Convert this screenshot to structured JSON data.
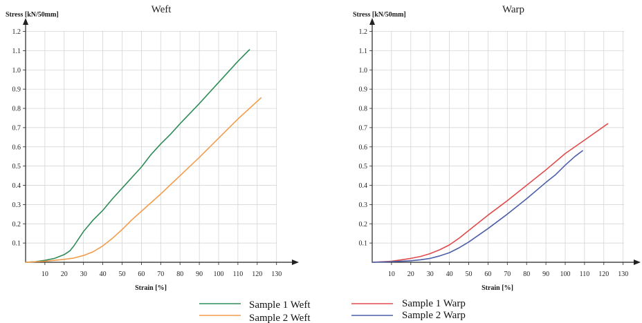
{
  "chart_data": [
    {
      "type": "line",
      "title": "Weft",
      "xlabel": "Strain [%]",
      "ylabel": "Stress [kN/50mm]",
      "xlim": [
        0,
        135
      ],
      "ylim": [
        0,
        1.25
      ],
      "xticks": [
        10,
        20,
        30,
        40,
        50,
        60,
        70,
        80,
        90,
        100,
        110,
        120,
        130
      ],
      "yticks": [
        "0.1",
        "0.2",
        "0.3",
        "0.4",
        "0.5",
        "0.6",
        "0.7",
        "0.8",
        "0.9",
        "1.0",
        "1.1",
        "1.2"
      ],
      "grid": true,
      "series": [
        {
          "name": "Sample 1 Weft",
          "color": "#2e8b57",
          "points": [
            [
              0,
              0
            ],
            [
              5,
              0.003
            ],
            [
              10,
              0.01
            ],
            [
              15,
              0.02
            ],
            [
              20,
              0.04
            ],
            [
              23,
              0.06
            ],
            [
              25,
              0.085
            ],
            [
              28,
              0.13
            ],
            [
              30,
              0.16
            ],
            [
              35,
              0.22
            ],
            [
              40,
              0.27
            ],
            [
              45,
              0.33
            ],
            [
              50,
              0.385
            ],
            [
              55,
              0.44
            ],
            [
              60,
              0.495
            ],
            [
              65,
              0.56
            ],
            [
              70,
              0.615
            ],
            [
              75,
              0.665
            ],
            [
              80,
              0.72
            ],
            [
              90,
              0.825
            ],
            [
              100,
              0.935
            ],
            [
              110,
              1.045
            ],
            [
              116,
              1.105
            ]
          ]
        },
        {
          "name": "Sample 2 Weft",
          "color": "#f39c4a",
          "points": [
            [
              0,
              0
            ],
            [
              10,
              0.005
            ],
            [
              20,
              0.015
            ],
            [
              25,
              0.022
            ],
            [
              30,
              0.035
            ],
            [
              35,
              0.055
            ],
            [
              40,
              0.085
            ],
            [
              45,
              0.125
            ],
            [
              50,
              0.17
            ],
            [
              55,
              0.22
            ],
            [
              60,
              0.265
            ],
            [
              70,
              0.355
            ],
            [
              80,
              0.45
            ],
            [
              90,
              0.545
            ],
            [
              100,
              0.645
            ],
            [
              110,
              0.745
            ],
            [
              122,
              0.855
            ]
          ]
        }
      ]
    },
    {
      "type": "line",
      "title": "Warp",
      "xlabel": "Strain [%]",
      "ylabel": "Stress [kN/50mm]",
      "xlim": [
        0,
        135
      ],
      "ylim": [
        0,
        1.25
      ],
      "xticks": [
        10,
        20,
        30,
        40,
        50,
        60,
        70,
        80,
        90,
        100,
        110,
        120,
        130
      ],
      "yticks": [
        "0.1",
        "0.2",
        "0.3",
        "0.4",
        "0.5",
        "0.6",
        "0.7",
        "0.8",
        "0.9",
        "1.0",
        "1.1",
        "1.2"
      ],
      "grid": true,
      "series": [
        {
          "name": "Sample 1 Warp",
          "color": "#e04a4a",
          "points": [
            [
              0,
              0
            ],
            [
              10,
              0.005
            ],
            [
              20,
              0.02
            ],
            [
              25,
              0.03
            ],
            [
              30,
              0.045
            ],
            [
              35,
              0.065
            ],
            [
              40,
              0.09
            ],
            [
              45,
              0.125
            ],
            [
              50,
              0.165
            ],
            [
              60,
              0.245
            ],
            [
              70,
              0.32
            ],
            [
              80,
              0.4
            ],
            [
              90,
              0.48
            ],
            [
              100,
              0.565
            ],
            [
              110,
              0.635
            ],
            [
              122,
              0.72
            ]
          ]
        },
        {
          "name": "Sample 2 Warp",
          "color": "#4a5ea8",
          "points": [
            [
              0,
              0
            ],
            [
              10,
              0.003
            ],
            [
              20,
              0.008
            ],
            [
              25,
              0.013
            ],
            [
              30,
              0.02
            ],
            [
              35,
              0.033
            ],
            [
              40,
              0.05
            ],
            [
              45,
              0.075
            ],
            [
              50,
              0.105
            ],
            [
              60,
              0.175
            ],
            [
              70,
              0.25
            ],
            [
              80,
              0.33
            ],
            [
              90,
              0.415
            ],
            [
              95,
              0.455
            ],
            [
              100,
              0.505
            ],
            [
              105,
              0.55
            ],
            [
              109,
              0.58
            ]
          ]
        }
      ]
    }
  ],
  "legend": [
    {
      "label": "Sample 1 Weft",
      "color": "#2e8b57"
    },
    {
      "label": "Sample 2 Weft",
      "color": "#f39c4a"
    },
    {
      "label": "Sample 1 Warp",
      "color": "#e04a4a"
    },
    {
      "label": "Sample 2 Warp",
      "color": "#4a5ea8"
    }
  ]
}
